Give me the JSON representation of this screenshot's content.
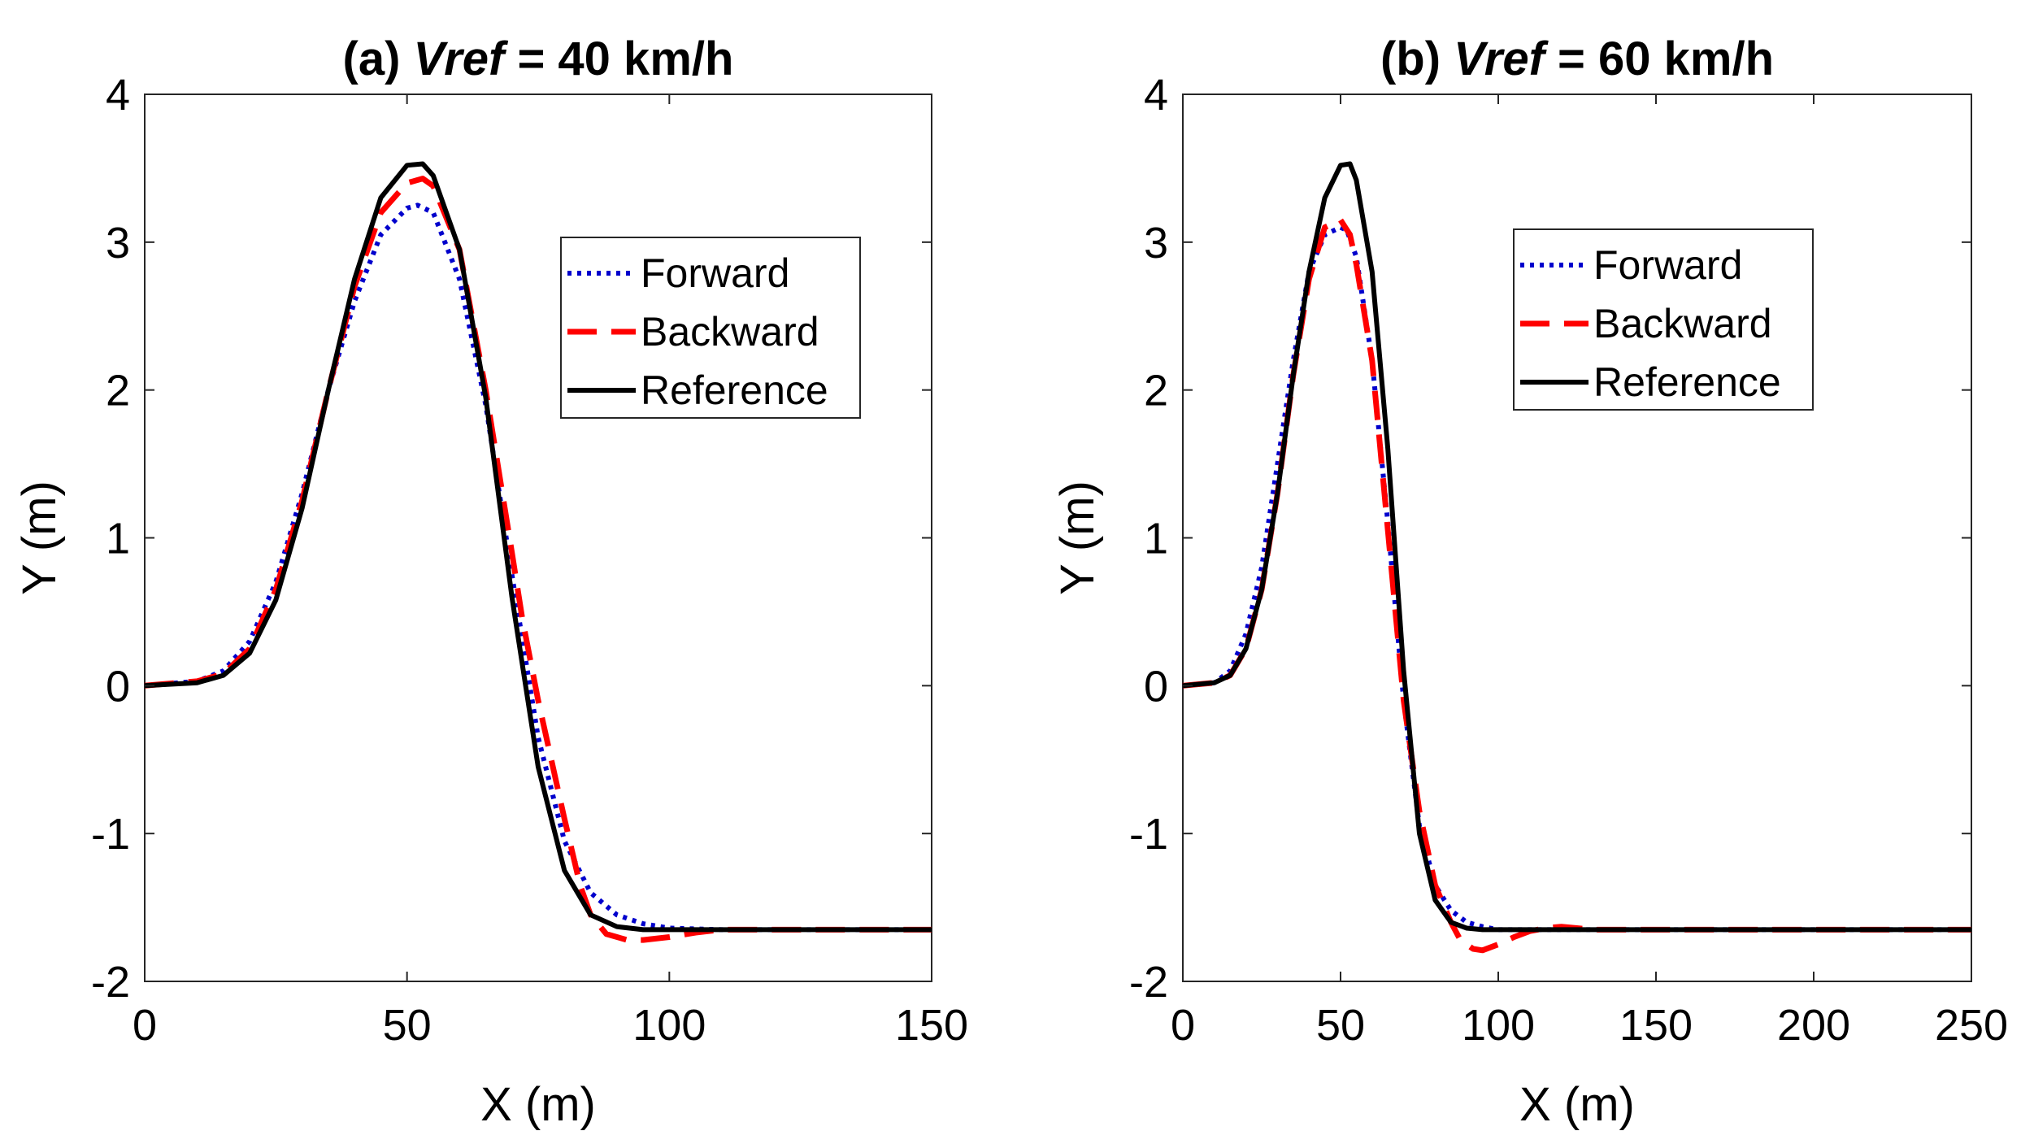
{
  "chart_data": [
    {
      "type": "line",
      "title": {
        "prefix": "(a) ",
        "italic": "Vref",
        "suffix": " = 40 km/h"
      },
      "xlabel": "X (m)",
      "ylabel": "Y (m)",
      "xlim": [
        0,
        150
      ],
      "ylim": [
        -2,
        4
      ],
      "xticks": [
        "0",
        "50",
        "100",
        "150"
      ],
      "yticks": [
        "-2",
        "-1",
        "0",
        "1",
        "2",
        "3",
        "4"
      ],
      "grid": false,
      "legend_position": "top-right",
      "series": [
        {
          "name": "Forward",
          "color": "#0000cc",
          "style": "dotted",
          "x": [
            0,
            10,
            15,
            20,
            25,
            30,
            35,
            40,
            45,
            50,
            52,
            55,
            60,
            65,
            70,
            75,
            80,
            85,
            90,
            95,
            100,
            110,
            150
          ],
          "y": [
            0,
            0.03,
            0.1,
            0.3,
            0.7,
            1.3,
            2.0,
            2.6,
            3.05,
            3.23,
            3.25,
            3.2,
            2.75,
            1.9,
            0.75,
            -0.35,
            -1.05,
            -1.4,
            -1.55,
            -1.61,
            -1.64,
            -1.65,
            -1.65
          ]
        },
        {
          "name": "Backward",
          "color": "#ff0000",
          "style": "dashed",
          "x": [
            0,
            10,
            15,
            20,
            25,
            30,
            35,
            40,
            45,
            50,
            53,
            55,
            60,
            65,
            70,
            72,
            75,
            80,
            83,
            85,
            88,
            92,
            95,
            100,
            105,
            110,
            150
          ],
          "y": [
            0,
            0.03,
            0.08,
            0.25,
            0.65,
            1.25,
            2.0,
            2.7,
            3.2,
            3.4,
            3.43,
            3.38,
            2.95,
            2.0,
            0.9,
            0.45,
            -0.1,
            -0.9,
            -1.35,
            -1.55,
            -1.68,
            -1.72,
            -1.72,
            -1.7,
            -1.67,
            -1.65,
            -1.65
          ]
        },
        {
          "name": "Reference",
          "color": "#000000",
          "style": "solid",
          "x": [
            0,
            10,
            15,
            20,
            25,
            30,
            35,
            40,
            45,
            50,
            53,
            55,
            60,
            65,
            70,
            75,
            80,
            85,
            90,
            95,
            100,
            110,
            150
          ],
          "y": [
            0,
            0.02,
            0.07,
            0.22,
            0.58,
            1.2,
            2.0,
            2.75,
            3.3,
            3.52,
            3.53,
            3.45,
            2.95,
            1.95,
            0.6,
            -0.55,
            -1.25,
            -1.55,
            -1.63,
            -1.65,
            -1.65,
            -1.65,
            -1.65
          ]
        }
      ]
    },
    {
      "type": "line",
      "title": {
        "prefix": "(b) ",
        "italic": "Vref",
        "suffix": " = 60 km/h"
      },
      "xlabel": "X (m)",
      "ylabel": "Y (m)",
      "xlim": [
        0,
        250
      ],
      "ylim": [
        -2,
        4
      ],
      "xticks": [
        "0",
        "50",
        "100",
        "150",
        "200",
        "250"
      ],
      "yticks": [
        "-2",
        "-1",
        "0",
        "1",
        "2",
        "3",
        "4"
      ],
      "grid": false,
      "legend_position": "top-right",
      "series": [
        {
          "name": "Forward",
          "color": "#0000cc",
          "style": "dotted",
          "x": [
            0,
            10,
            15,
            20,
            25,
            30,
            35,
            40,
            45,
            50,
            52,
            55,
            60,
            65,
            70,
            75,
            80,
            85,
            90,
            95,
            100,
            110,
            250
          ],
          "y": [
            0,
            0.02,
            0.1,
            0.35,
            0.8,
            1.5,
            2.2,
            2.8,
            3.05,
            3.1,
            3.08,
            2.9,
            2.2,
            1.1,
            -0.1,
            -0.95,
            -1.35,
            -1.52,
            -1.6,
            -1.63,
            -1.65,
            -1.65,
            -1.65
          ]
        },
        {
          "name": "Backward",
          "color": "#ff0000",
          "style": "dashed",
          "x": [
            0,
            10,
            15,
            20,
            25,
            30,
            35,
            40,
            45,
            50,
            53,
            55,
            60,
            65,
            70,
            75,
            80,
            85,
            88,
            92,
            95,
            100,
            105,
            110,
            115,
            120,
            130,
            250
          ],
          "y": [
            0,
            0.02,
            0.07,
            0.25,
            0.65,
            1.3,
            2.1,
            2.75,
            3.1,
            3.15,
            3.05,
            2.85,
            2.2,
            1.05,
            -0.1,
            -0.85,
            -1.35,
            -1.6,
            -1.72,
            -1.78,
            -1.79,
            -1.75,
            -1.7,
            -1.66,
            -1.64,
            -1.63,
            -1.65,
            -1.65
          ]
        },
        {
          "name": "Reference",
          "color": "#000000",
          "style": "solid",
          "x": [
            0,
            10,
            15,
            20,
            25,
            30,
            35,
            40,
            45,
            50,
            53,
            55,
            60,
            65,
            70,
            75,
            80,
            85,
            90,
            95,
            100,
            110,
            250
          ],
          "y": [
            0,
            0.02,
            0.07,
            0.25,
            0.65,
            1.3,
            2.1,
            2.8,
            3.3,
            3.52,
            3.53,
            3.42,
            2.8,
            1.6,
            0.1,
            -1.0,
            -1.45,
            -1.6,
            -1.64,
            -1.65,
            -1.65,
            -1.65,
            -1.65
          ]
        }
      ]
    }
  ]
}
